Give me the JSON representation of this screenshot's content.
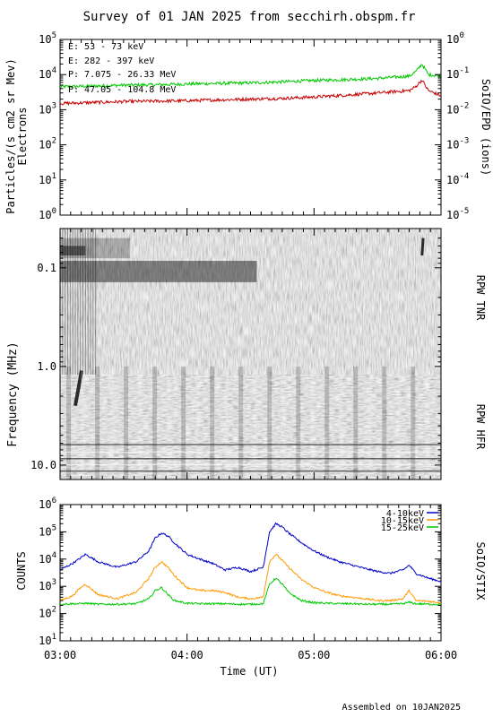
{
  "title": "Survey of 01 JAN 2025 from secchirh.obspm.fr",
  "footer": "Assembled on  10JAN2025",
  "x_axis": {
    "label": "Time (UT)",
    "ticks": [
      "03:00",
      "04:00",
      "05:00",
      "06:00"
    ],
    "range_hours": [
      3,
      6
    ]
  },
  "colors": {
    "electrons_low": "#00c800",
    "electrons_high": "#c80000",
    "protons_low": "#000000",
    "protons_high": "#0000c8",
    "stix_4_10": "#0000c8",
    "stix_10_15": "#ff9900",
    "stix_15_25": "#00c800"
  },
  "chart_data": [
    {
      "type": "line",
      "panel": "SolO/EPD",
      "ylabel_left": "Particles/(s cm2 sr Mev)",
      "ylabel_left_2": "Electrons",
      "ylabel_right": "SoIO/EPD (ions)",
      "y_scale": "log",
      "ylim": [
        1,
        100000
      ],
      "yticks_left": [
        "10^0",
        "10^1",
        "10^2",
        "10^3",
        "10^4",
        "10^5"
      ],
      "ylim_right": [
        1e-05,
        1
      ],
      "yticks_right": [
        "10^-5",
        "10^-4",
        "10^-3",
        "10^-2",
        "10^-1",
        "10^0"
      ],
      "legend": [
        "E: 53 - 73 keV",
        "E: 282 - 397 keV",
        "P: 7.075 - 26.33 MeV",
        "P: 47.05 - 104.8 MeV"
      ],
      "legend_position": "top-left",
      "x_hours": [
        3.0,
        3.25,
        3.5,
        3.75,
        4.0,
        4.25,
        4.5,
        4.75,
        5.0,
        5.25,
        5.5,
        5.75,
        5.8,
        5.85,
        5.9,
        6.0
      ],
      "series": [
        {
          "name": "E: 53 - 73 keV",
          "values": [
            4500,
            4700,
            5000,
            5100,
            5400,
            5600,
            5800,
            6200,
            6800,
            7200,
            7800,
            9000,
            12000,
            20000,
            10000,
            9000
          ]
        },
        {
          "name": "E: 282 - 397 keV",
          "values": [
            1500,
            1600,
            1700,
            1750,
            1800,
            1900,
            2000,
            2100,
            2300,
            2600,
            3000,
            3500,
            4500,
            7000,
            3500,
            2500
          ]
        }
      ]
    },
    {
      "type": "heatmap",
      "panel": "RPW TNR / RPW HFR",
      "ylabel": "Frequency (MHz)",
      "y_scale": "log",
      "ylim": [
        0.04,
        14
      ],
      "yticks": [
        "0.1",
        "1.0",
        "10.0"
      ],
      "right_labels": [
        "RPW TNR",
        "RPW HFR"
      ]
    },
    {
      "type": "line",
      "panel": "SoIO/STIX",
      "ylabel": "COUNTS",
      "ylabel_right": "SoIO/STIX",
      "y_scale": "log",
      "ylim": [
        10,
        1000000
      ],
      "yticks": [
        "10^1",
        "10^2",
        "10^3",
        "10^4",
        "10^5",
        "10^6"
      ],
      "legend": [
        "4-10keV",
        "10-15keV",
        "15-25keV"
      ],
      "legend_position": "top-right",
      "x_hours": [
        3.0,
        3.1,
        3.15,
        3.2,
        3.3,
        3.45,
        3.6,
        3.7,
        3.75,
        3.8,
        3.85,
        3.9,
        4.0,
        4.1,
        4.2,
        4.3,
        4.4,
        4.5,
        4.6,
        4.65,
        4.7,
        4.75,
        4.8,
        4.9,
        5.0,
        5.1,
        5.2,
        5.3,
        5.4,
        5.5,
        5.6,
        5.7,
        5.75,
        5.8,
        5.9,
        6.0
      ],
      "series": [
        {
          "name": "4-10keV",
          "values": [
            4000,
            7000,
            10000,
            15000,
            8000,
            5000,
            8000,
            20000,
            60000,
            90000,
            70000,
            40000,
            15000,
            10000,
            7000,
            4000,
            5000,
            3500,
            5000,
            100000,
            200000,
            150000,
            90000,
            40000,
            20000,
            12000,
            8000,
            6000,
            4500,
            3500,
            3000,
            4000,
            6000,
            3000,
            2000,
            1500
          ]
        },
        {
          "name": "10-15keV",
          "values": [
            300,
            450,
            800,
            1200,
            500,
            350,
            600,
            2000,
            5000,
            8000,
            5000,
            2500,
            900,
            700,
            700,
            600,
            400,
            350,
            400,
            8000,
            15000,
            9000,
            5000,
            1800,
            900,
            600,
            450,
            400,
            350,
            300,
            300,
            350,
            700,
            300,
            280,
            250
          ]
        },
        {
          "name": "15-25keV",
          "values": [
            220,
            230,
            230,
            240,
            220,
            220,
            230,
            350,
            700,
            900,
            500,
            300,
            240,
            230,
            230,
            230,
            220,
            220,
            230,
            1200,
            2000,
            1200,
            600,
            300,
            250,
            240,
            230,
            230,
            220,
            220,
            220,
            230,
            260,
            230,
            220,
            220
          ]
        }
      ]
    }
  ]
}
